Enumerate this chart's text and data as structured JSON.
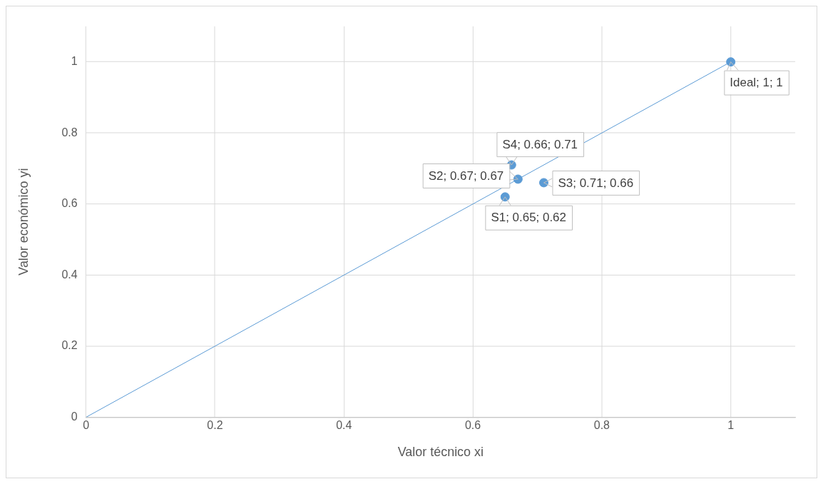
{
  "chart_data": {
    "type": "scatter",
    "xlabel": "Valor técnico xi",
    "ylabel": "Valor económico yi",
    "xlim": [
      0,
      1.1
    ],
    "ylim": [
      0,
      1.1
    ],
    "xticks": [
      0,
      0.2,
      0.4,
      0.6,
      0.8,
      1
    ],
    "yticks": [
      0,
      0.2,
      0.4,
      0.6,
      0.8,
      1
    ],
    "grid": true,
    "legend": false,
    "marker": "circle",
    "series": [
      {
        "type": "line",
        "color": "#5b9bd5",
        "x": [
          0,
          1
        ],
        "values": [
          0,
          1
        ],
        "marker": "none",
        "line_style": "solid"
      },
      {
        "type": "scatter",
        "color": "#5b9bd5",
        "x": [
          1,
          0.65,
          0.67,
          0.71,
          0.66
        ],
        "values": [
          1,
          0.62,
          0.67,
          0.66,
          0.71
        ],
        "value_labels": [
          "Ideal; 1; 1",
          "S1; 0.65; 0.62",
          "S2; 0.67; 0.67",
          "S3; 0.71; 0.66",
          "S4; 0.66; 0.71"
        ]
      }
    ]
  }
}
